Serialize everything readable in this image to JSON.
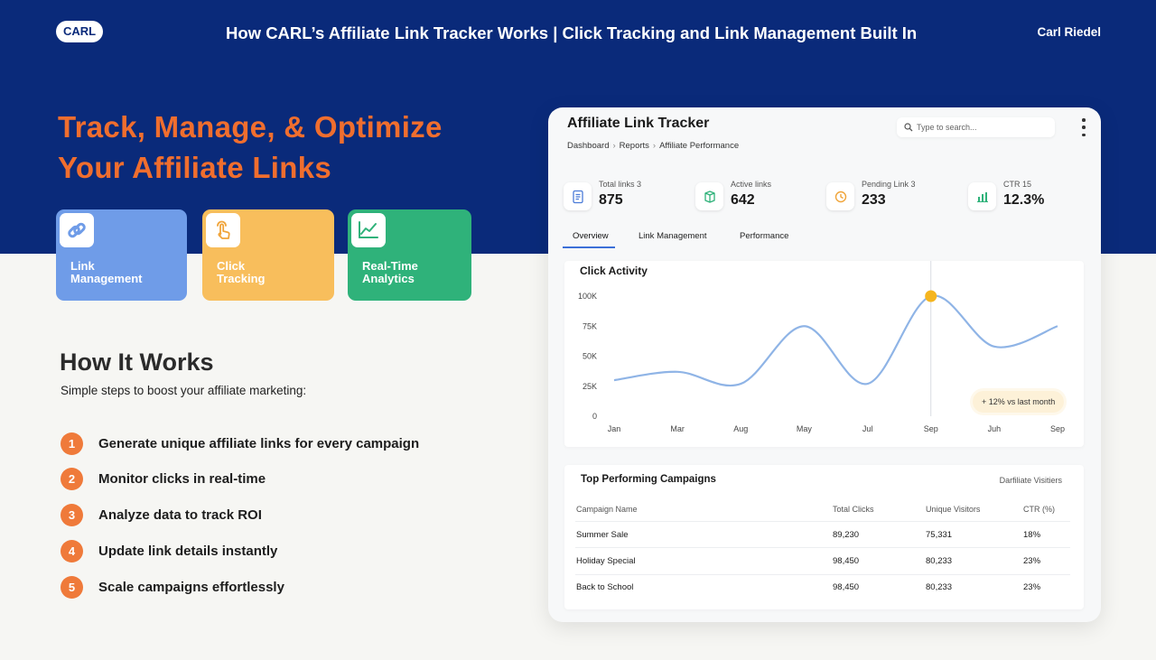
{
  "header": {
    "logo": "CARL",
    "title": "How CARL’s Affiliate Link Tracker Works  |  Click Tracking and Link Management Built In",
    "author": "Carl Riedel"
  },
  "hero": {
    "line1": "Track, Manage, & Optimize",
    "line2": "Your Affiliate Links"
  },
  "features": [
    {
      "line1": "Link",
      "line2": "Management",
      "icon": "link-icon",
      "color": "#6f9ce8"
    },
    {
      "line1": "Click",
      "line2": "Tracking",
      "icon": "tap-icon",
      "color": "#f8be5c"
    },
    {
      "line1": "Real-Time",
      "line2": "Analytics",
      "icon": "trend-icon",
      "color": "#2fb27a"
    }
  ],
  "how": {
    "title": "How It Works",
    "subtitle": "Simple steps to boost your affiliate marketing:",
    "steps": [
      {
        "num": "1",
        "text": "Generate unique affiliate links for every campaign"
      },
      {
        "num": "2",
        "text": "Monitor clicks in real-time"
      },
      {
        "num": "3",
        "text": "Analyze data to track ROI"
      },
      {
        "num": "4",
        "text": "Update link details instantly"
      },
      {
        "num": "5",
        "text": "Scale campaigns effortlessly"
      }
    ]
  },
  "dashboard": {
    "title": "Affiliate Link Tracker",
    "breadcrumb": [
      "Dashboard",
      "Reports",
      "Affiliate Performance"
    ],
    "search_placeholder": "Type to search...",
    "stats": [
      {
        "label": "Total links 3",
        "value": "875",
        "icon": "document-icon",
        "color": "#4a7bd8"
      },
      {
        "label": "Active links",
        "value": "642",
        "icon": "box-icon",
        "color": "#2fb27a"
      },
      {
        "label": "Pending Link 3",
        "value": "233",
        "icon": "clock-icon",
        "color": "#f0a43a"
      },
      {
        "label": "CTR 15",
        "value": "12.3%",
        "icon": "bar-chart-icon",
        "color": "#2fb27a"
      }
    ],
    "tabs": [
      {
        "label": "Overview",
        "active": true
      },
      {
        "label": "Link Management",
        "active": false
      },
      {
        "label": "Performance",
        "active": false
      }
    ],
    "badge": "+ 12% vs last month"
  },
  "chart_data": {
    "type": "line",
    "title": "Click Activity",
    "categories": [
      "Jan",
      "Mar",
      "Aug",
      "May",
      "Jul",
      "Sep",
      "Juh",
      "Sep"
    ],
    "yticks": [
      "100K",
      "75K",
      "50K",
      "25K",
      "0"
    ],
    "ylim": [
      0,
      100000
    ],
    "series": [
      {
        "color": "#8fb4e6",
        "values": [
          30000,
          37000,
          27000,
          75000,
          27000,
          100000,
          58000,
          75000
        ]
      }
    ],
    "highlight": {
      "value": 100000,
      "color": "#f5b51f"
    },
    "grid": false
  },
  "table": {
    "title": "Top Performing Campaigns",
    "corner": "Darfiliate Visitiers",
    "headers": [
      "Campaign Name",
      "Total Clicks",
      "Unique Visitors",
      "CTR (%)"
    ],
    "rows": [
      [
        "Summer Sale",
        "89,230",
        "75,331",
        "18%"
      ],
      [
        "Holiday Special",
        "98,450",
        "80,233",
        "23%"
      ],
      [
        "Back to School",
        "98,450",
        "80,233",
        "23%"
      ]
    ]
  }
}
